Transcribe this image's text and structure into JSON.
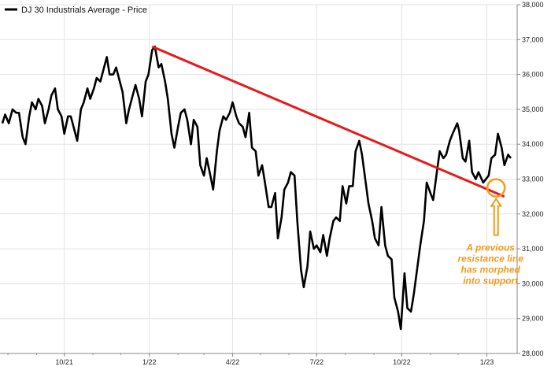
{
  "chart_data": {
    "type": "line",
    "title": "",
    "xlabel": "",
    "ylabel": "",
    "legend": {
      "placement": "top-left",
      "label": "DJ 30 Industrials Average - Price"
    },
    "grid": true,
    "ylim": [
      28000,
      38000
    ],
    "y_ticks": [
      28000,
      29000,
      30000,
      31000,
      32000,
      33000,
      34000,
      35000,
      36000,
      37000,
      38000
    ],
    "y_tick_labels": [
      "28,000",
      "29,000",
      "30,000",
      "31,000",
      "32,000",
      "33,000",
      "34,000",
      "35,000",
      "36,000",
      "37,000",
      "38,000"
    ],
    "xlim": [
      "2021-07-26",
      "2023-01-27"
    ],
    "x_ticks": [
      "2021-10-01",
      "2022-01-01",
      "2022-04-01",
      "2022-07-01",
      "2022-10-01",
      "2023-01-01"
    ],
    "x_tick_labels": [
      "10/21",
      "1/22",
      "4/22",
      "7/22",
      "10/22",
      "1/23"
    ],
    "series": [
      {
        "color": "#000000",
        "points": [
          [
            "2021-07-26",
            34600
          ],
          [
            "2021-07-29",
            34850
          ],
          [
            "2021-08-02",
            34600
          ],
          [
            "2021-08-06",
            35000
          ],
          [
            "2021-08-10",
            34900
          ],
          [
            "2021-08-13",
            34900
          ],
          [
            "2021-08-17",
            34200
          ],
          [
            "2021-08-20",
            34000
          ],
          [
            "2021-08-24",
            34800
          ],
          [
            "2021-08-27",
            35200
          ],
          [
            "2021-08-31",
            35000
          ],
          [
            "2021-09-03",
            35300
          ],
          [
            "2021-09-07",
            35100
          ],
          [
            "2021-09-10",
            34600
          ],
          [
            "2021-09-14",
            35000
          ],
          [
            "2021-09-17",
            35400
          ],
          [
            "2021-09-21",
            35600
          ],
          [
            "2021-09-24",
            35000
          ],
          [
            "2021-09-28",
            34800
          ],
          [
            "2021-10-01",
            34300
          ],
          [
            "2021-10-05",
            34800
          ],
          [
            "2021-10-08",
            34800
          ],
          [
            "2021-10-12",
            34400
          ],
          [
            "2021-10-15",
            34100
          ],
          [
            "2021-10-19",
            35000
          ],
          [
            "2021-10-22",
            35200
          ],
          [
            "2021-10-26",
            35600
          ],
          [
            "2021-10-29",
            35300
          ],
          [
            "2021-11-02",
            35600
          ],
          [
            "2021-11-05",
            35900
          ],
          [
            "2021-11-09",
            35800
          ],
          [
            "2021-11-12",
            36100
          ],
          [
            "2021-11-16",
            36500
          ],
          [
            "2021-11-19",
            36000
          ],
          [
            "2021-11-23",
            36000
          ],
          [
            "2021-11-26",
            36200
          ],
          [
            "2021-11-30",
            35800
          ],
          [
            "2021-12-03",
            35500
          ],
          [
            "2021-12-07",
            34600
          ],
          [
            "2021-12-10",
            35000
          ],
          [
            "2021-12-14",
            35400
          ],
          [
            "2021-12-17",
            35700
          ],
          [
            "2021-12-21",
            35300
          ],
          [
            "2021-12-24",
            34800
          ],
          [
            "2021-12-28",
            35800
          ],
          [
            "2021-12-31",
            36000
          ],
          [
            "2022-01-04",
            36700
          ],
          [
            "2022-01-07",
            36800
          ],
          [
            "2022-01-11",
            36200
          ],
          [
            "2022-01-14",
            36300
          ],
          [
            "2022-01-18",
            35800
          ],
          [
            "2022-01-21",
            35300
          ],
          [
            "2022-01-25",
            34300
          ],
          [
            "2022-01-28",
            33900
          ],
          [
            "2022-02-01",
            34500
          ],
          [
            "2022-02-04",
            34900
          ],
          [
            "2022-02-08",
            35000
          ],
          [
            "2022-02-11",
            34700
          ],
          [
            "2022-02-15",
            34000
          ],
          [
            "2022-02-18",
            34700
          ],
          [
            "2022-02-22",
            34500
          ],
          [
            "2022-02-25",
            33400
          ],
          [
            "2022-03-01",
            33100
          ],
          [
            "2022-03-04",
            33600
          ],
          [
            "2022-03-08",
            33100
          ],
          [
            "2022-03-11",
            32700
          ],
          [
            "2022-03-15",
            33800
          ],
          [
            "2022-03-18",
            34400
          ],
          [
            "2022-03-22",
            34800
          ],
          [
            "2022-03-25",
            34700
          ],
          [
            "2022-03-29",
            34900
          ],
          [
            "2022-04-01",
            35200
          ],
          [
            "2022-04-05",
            34800
          ],
          [
            "2022-04-08",
            34600
          ],
          [
            "2022-04-12",
            34500
          ],
          [
            "2022-04-15",
            34200
          ],
          [
            "2022-04-19",
            34900
          ],
          [
            "2022-04-22",
            33900
          ],
          [
            "2022-04-26",
            33800
          ],
          [
            "2022-04-29",
            33100
          ],
          [
            "2022-05-03",
            33400
          ],
          [
            "2022-05-06",
            32900
          ],
          [
            "2022-05-10",
            32200
          ],
          [
            "2022-05-13",
            32200
          ],
          [
            "2022-05-17",
            32600
          ],
          [
            "2022-05-20",
            31300
          ],
          [
            "2022-05-24",
            31900
          ],
          [
            "2022-05-27",
            32700
          ],
          [
            "2022-05-31",
            32900
          ],
          [
            "2022-06-03",
            33200
          ],
          [
            "2022-06-07",
            33100
          ],
          [
            "2022-06-10",
            31800
          ],
          [
            "2022-06-14",
            30400
          ],
          [
            "2022-06-17",
            29900
          ],
          [
            "2022-06-21",
            30500
          ],
          [
            "2022-06-24",
            31500
          ],
          [
            "2022-06-28",
            31000
          ],
          [
            "2022-07-01",
            31100
          ],
          [
            "2022-07-05",
            30900
          ],
          [
            "2022-07-08",
            31400
          ],
          [
            "2022-07-12",
            30800
          ],
          [
            "2022-07-15",
            31300
          ],
          [
            "2022-07-19",
            31800
          ],
          [
            "2022-07-22",
            31900
          ],
          [
            "2022-07-26",
            31800
          ],
          [
            "2022-07-29",
            32800
          ],
          [
            "2022-08-02",
            32300
          ],
          [
            "2022-08-05",
            32800
          ],
          [
            "2022-08-09",
            32800
          ],
          [
            "2022-08-12",
            33800
          ],
          [
            "2022-08-16",
            34100
          ],
          [
            "2022-08-19",
            33700
          ],
          [
            "2022-08-23",
            32900
          ],
          [
            "2022-08-26",
            32300
          ],
          [
            "2022-08-30",
            31800
          ],
          [
            "2022-09-02",
            31300
          ],
          [
            "2022-09-06",
            31100
          ],
          [
            "2022-09-09",
            32200
          ],
          [
            "2022-09-13",
            31100
          ],
          [
            "2022-09-16",
            30800
          ],
          [
            "2022-09-20",
            30700
          ],
          [
            "2022-09-23",
            29600
          ],
          [
            "2022-09-27",
            29200
          ],
          [
            "2022-09-30",
            28700
          ],
          [
            "2022-10-04",
            30300
          ],
          [
            "2022-10-07",
            29300
          ],
          [
            "2022-10-11",
            29200
          ],
          [
            "2022-10-14",
            29700
          ],
          [
            "2022-10-18",
            30500
          ],
          [
            "2022-10-21",
            31100
          ],
          [
            "2022-10-25",
            31800
          ],
          [
            "2022-10-28",
            32900
          ],
          [
            "2022-11-01",
            32600
          ],
          [
            "2022-11-04",
            32400
          ],
          [
            "2022-11-08",
            33200
          ],
          [
            "2022-11-11",
            33800
          ],
          [
            "2022-11-15",
            33600
          ],
          [
            "2022-11-18",
            33700
          ],
          [
            "2022-11-22",
            34100
          ],
          [
            "2022-11-25",
            34300
          ],
          [
            "2022-11-30",
            34600
          ],
          [
            "2022-12-02",
            34400
          ],
          [
            "2022-12-06",
            33600
          ],
          [
            "2022-12-09",
            33500
          ],
          [
            "2022-12-13",
            34100
          ],
          [
            "2022-12-16",
            33200
          ],
          [
            "2022-12-20",
            33000
          ],
          [
            "2022-12-23",
            33200
          ],
          [
            "2022-12-28",
            32900
          ],
          [
            "2023-01-03",
            33100
          ],
          [
            "2023-01-06",
            33600
          ],
          [
            "2023-01-10",
            33700
          ],
          [
            "2023-01-13",
            34300
          ],
          [
            "2023-01-17",
            33900
          ],
          [
            "2023-01-20",
            33400
          ],
          [
            "2023-01-24",
            33700
          ],
          [
            "2023-01-27",
            33600
          ]
        ]
      }
    ],
    "trendline": {
      "color": "#e8191c",
      "from": [
        "2022-01-04",
        36800
      ],
      "to": [
        "2023-01-20",
        32500
      ]
    },
    "annotation": {
      "color": "#f29b1e",
      "text_lines": [
        "A previous",
        "resistance line",
        "has morphed",
        "into support"
      ],
      "circle_at": [
        "2023-01-11",
        32750
      ],
      "shape": "circle with upward arrow"
    }
  }
}
